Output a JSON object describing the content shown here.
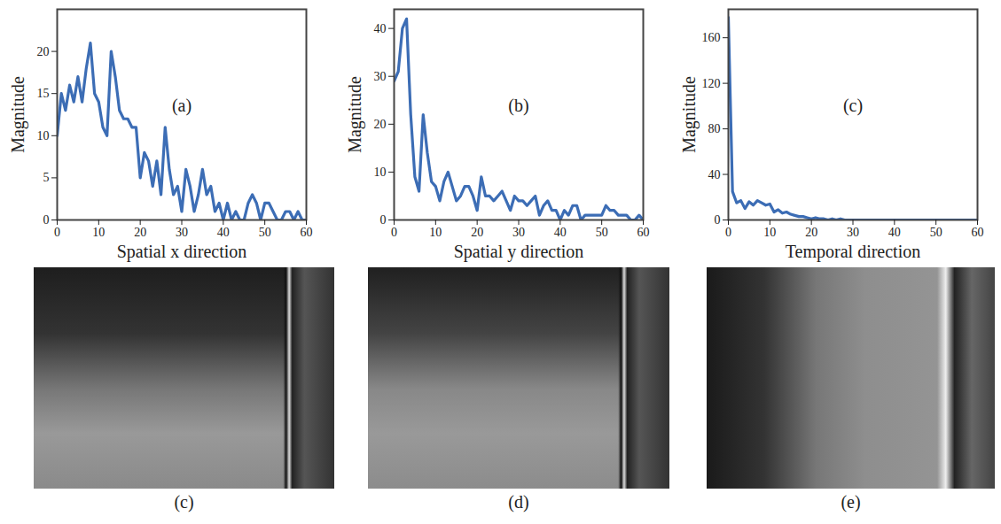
{
  "chart_data": [
    {
      "type": "line",
      "title": "(a)",
      "x_label": "Spatial x direction",
      "y_label": "Magnitude",
      "color": "#3c6db5",
      "x": [
        0,
        1,
        2,
        3,
        4,
        5,
        6,
        7,
        8,
        9,
        10,
        11,
        12,
        13,
        14,
        15,
        16,
        17,
        18,
        19,
        20,
        21,
        22,
        23,
        24,
        25,
        26,
        27,
        28,
        29,
        30,
        31,
        32,
        33,
        34,
        35,
        36,
        37,
        38,
        39,
        40,
        41,
        42,
        43,
        44,
        45,
        46,
        47,
        48,
        49,
        50,
        51,
        52,
        53,
        54,
        55,
        56,
        57,
        58,
        59,
        60
      ],
      "values": [
        10,
        15,
        13,
        16,
        14,
        17,
        14,
        18,
        21,
        15,
        14,
        11,
        10,
        20,
        17,
        13,
        12,
        12,
        11,
        11,
        5,
        8,
        7,
        4,
        7,
        3,
        11,
        6,
        3,
        4,
        1,
        6,
        4,
        1,
        3,
        6,
        3,
        4,
        1,
        2,
        0,
        2,
        0,
        1,
        0,
        0,
        2,
        3,
        2,
        0,
        2,
        2,
        1,
        0,
        0,
        1,
        1,
        0,
        1,
        0,
        0
      ],
      "xlim": [
        0,
        60
      ],
      "xticks": [
        0,
        10,
        20,
        30,
        40,
        50,
        60
      ],
      "ylim": [
        0,
        25
      ],
      "yticks": [
        0,
        5,
        10,
        15,
        20
      ]
    },
    {
      "type": "line",
      "title": "(b)",
      "x_label": "Spatial y direction",
      "y_label": "Magnitude",
      "color": "#3c6db5",
      "x": [
        0,
        1,
        2,
        3,
        4,
        5,
        6,
        7,
        8,
        9,
        10,
        11,
        12,
        13,
        14,
        15,
        16,
        17,
        18,
        19,
        20,
        21,
        22,
        23,
        24,
        25,
        26,
        27,
        28,
        29,
        30,
        31,
        32,
        33,
        34,
        35,
        36,
        37,
        38,
        39,
        40,
        41,
        42,
        43,
        44,
        45,
        46,
        47,
        48,
        49,
        50,
        51,
        52,
        53,
        54,
        55,
        56,
        57,
        58,
        59,
        60
      ],
      "values": [
        29,
        31,
        40,
        42,
        22,
        9,
        6,
        22,
        14,
        8,
        7,
        4,
        8,
        10,
        7,
        4,
        5,
        7,
        7,
        5,
        2,
        9,
        5,
        5,
        4,
        5,
        6,
        4,
        2,
        5,
        4,
        4,
        3,
        4,
        5,
        1,
        3,
        4,
        2,
        2,
        0,
        2,
        1,
        3,
        3,
        0,
        1,
        1,
        1,
        1,
        1,
        3,
        2,
        2,
        1,
        1,
        1,
        0,
        0,
        1,
        0
      ],
      "xlim": [
        0,
        60
      ],
      "xticks": [
        0,
        10,
        20,
        30,
        40,
        50,
        60
      ],
      "ylim": [
        0,
        44
      ],
      "yticks": [
        0,
        10,
        20,
        30,
        40
      ]
    },
    {
      "type": "line",
      "title": "(c)",
      "x_label": "Temporal direction",
      "y_label": "Magnitude",
      "color": "#3c6db5",
      "x": [
        0,
        1,
        2,
        3,
        4,
        5,
        6,
        7,
        8,
        9,
        10,
        11,
        12,
        13,
        14,
        15,
        16,
        17,
        18,
        19,
        20,
        21,
        22,
        23,
        24,
        25,
        26,
        27,
        28,
        29,
        30,
        31,
        32,
        33,
        34,
        35,
        36,
        37,
        38,
        39,
        40,
        41,
        42,
        43,
        44,
        45,
        46,
        47,
        48,
        49,
        50,
        51,
        52,
        53,
        54,
        55,
        56,
        57,
        58,
        59,
        60
      ],
      "values": [
        178,
        25,
        15,
        17,
        10,
        16,
        13,
        17,
        15,
        13,
        14,
        7,
        9,
        6,
        7,
        5,
        4,
        3,
        3,
        2,
        1,
        2,
        1,
        1,
        0,
        1,
        0,
        1,
        0,
        0,
        0,
        0,
        0,
        0,
        0,
        0,
        0,
        0,
        0,
        0,
        0,
        0,
        0,
        0,
        0,
        0,
        0,
        0,
        0,
        0,
        0,
        0,
        0,
        0,
        0,
        0,
        0,
        0,
        0,
        0,
        0
      ],
      "xlim": [
        0,
        60
      ],
      "xticks": [
        0,
        10,
        20,
        30,
        40,
        50,
        60
      ],
      "ylim": [
        0,
        185
      ],
      "yticks": [
        0,
        40,
        80,
        120,
        160
      ]
    }
  ],
  "images": [
    {
      "label": "(c)"
    },
    {
      "label": "(d)"
    },
    {
      "label": "(e)"
    }
  ]
}
